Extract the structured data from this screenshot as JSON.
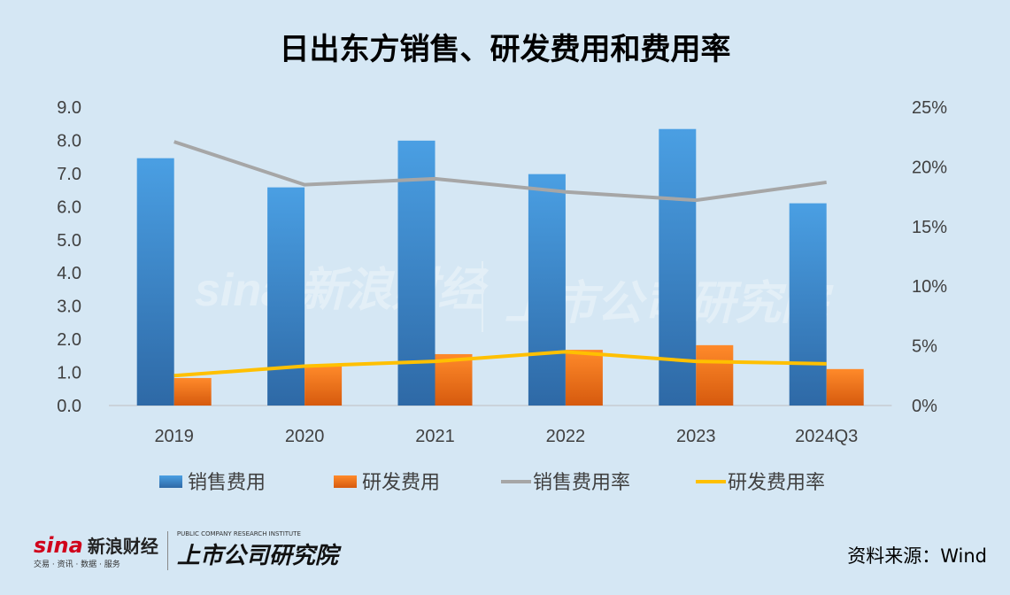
{
  "chart_data": {
    "type": "bar",
    "title": "日出东方销售、研发费用和费用率",
    "categories": [
      "2019",
      "2020",
      "2021",
      "2022",
      "2023",
      "2024Q3"
    ],
    "left_axis": {
      "ylim": [
        0,
        9
      ],
      "ticks": [
        "0.0",
        "1.0",
        "2.0",
        "3.0",
        "4.0",
        "5.0",
        "6.0",
        "7.0",
        "8.0",
        "9.0"
      ]
    },
    "right_axis": {
      "ylim": [
        0,
        25
      ],
      "ticks": [
        "0%",
        "5%",
        "10%",
        "15%",
        "20%",
        "25%"
      ]
    },
    "grid": false,
    "legend_placement": "bottom",
    "series": [
      {
        "name": "销售费用",
        "type": "bar",
        "axis": "left",
        "color": "#3f8fd6",
        "values": [
          7.46,
          6.58,
          7.99,
          6.98,
          8.34,
          6.1
        ]
      },
      {
        "name": "研发费用",
        "type": "bar",
        "axis": "left",
        "color": "#f07020",
        "values": [
          0.83,
          1.2,
          1.55,
          1.68,
          1.82,
          1.1
        ]
      },
      {
        "name": "销售费用率",
        "type": "line",
        "axis": "right",
        "color": "#a6a6a6",
        "values": [
          22.1,
          18.5,
          19.0,
          17.9,
          17.2,
          18.7
        ]
      },
      {
        "name": "研发费用率",
        "type": "line",
        "axis": "right",
        "color": "#ffc000",
        "values": [
          2.5,
          3.3,
          3.7,
          4.5,
          3.7,
          3.5
        ]
      }
    ]
  },
  "footer": {
    "source": "资料来源：Wind",
    "logo_sina": "sina",
    "logo_sina_cn": "新浪财经",
    "logo_sina_sub": "交易 · 资讯 · 数据 · 服务",
    "logo_inst_sub": "PUBLIC COMPANY RESEARCH INSTITUTE",
    "logo_inst": "上市公司研究院"
  }
}
